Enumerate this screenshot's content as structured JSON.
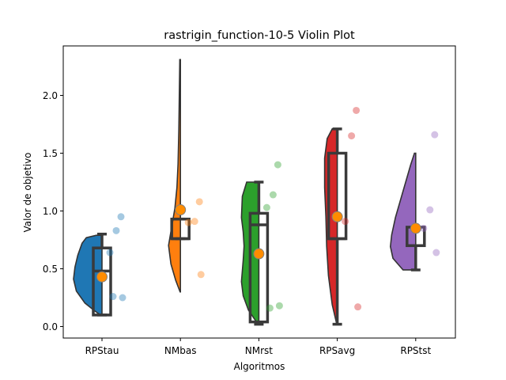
{
  "chart_data": {
    "type": "violin",
    "title": "rastrigin_function-10-5 Violin Plot",
    "xlabel": "Algoritmos",
    "ylabel": "Valor de objetivo",
    "ylim": [
      -0.1,
      2.4
    ],
    "yticks": [
      0.0,
      0.5,
      1.0,
      1.5,
      2.0
    ],
    "ytick_labels": [
      "0.0",
      "0.5",
      "1.0",
      "1.5",
      "2.0"
    ],
    "grid": false,
    "categories": [
      "RPStau",
      "NMbas",
      "NMrst",
      "RPSavg",
      "RPStst"
    ],
    "series": [
      {
        "color": "#1f77b4",
        "violin_min": 0.1,
        "violin_max": 0.79,
        "box": {
          "whisker_low": 0.1,
          "q1": 0.1,
          "median": 0.48,
          "q3": 0.68,
          "whisker_high": 0.8
        },
        "mean": 0.43,
        "points": [
          0.95,
          0.83,
          0.64,
          0.25,
          0.26
        ]
      },
      {
        "color": "#ff7f0e",
        "violin_min": 0.3,
        "violin_max": 2.31,
        "box": {
          "whisker_low": 0.76,
          "q1": 0.76,
          "median": 0.76,
          "q3": 0.93,
          "whisker_high": 0.93
        },
        "mean": 1.01,
        "points": [
          1.08,
          0.91,
          0.9,
          0.45
        ]
      },
      {
        "color": "#2ca02c",
        "violin_min": 0.02,
        "violin_max": 1.25,
        "box": {
          "whisker_low": 0.02,
          "q1": 0.04,
          "median": 0.88,
          "q3": 0.98,
          "whisker_high": 1.25
        },
        "mean": 0.63,
        "points": [
          1.4,
          1.14,
          1.03,
          0.18,
          0.16
        ]
      },
      {
        "color": "#d62728",
        "violin_min": 0.02,
        "violin_max": 1.71,
        "box": {
          "whisker_low": 0.02,
          "q1": 0.76,
          "median": 0.76,
          "q3": 1.5,
          "whisker_high": 1.71
        },
        "mean": 0.95,
        "points": [
          1.87,
          1.65,
          0.91,
          0.17
        ]
      },
      {
        "color": "#9467bd",
        "violin_min": 0.49,
        "violin_max": 1.5,
        "box": {
          "whisker_low": 0.49,
          "q1": 0.7,
          "median": 0.7,
          "q3": 0.86,
          "whisker_high": 0.86
        },
        "mean": 0.85,
        "points": [
          1.66,
          1.01,
          0.85,
          0.64
        ]
      }
    ]
  }
}
